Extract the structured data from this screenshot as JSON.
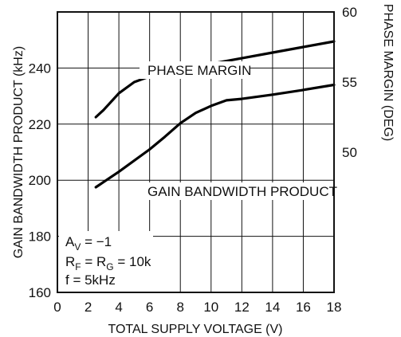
{
  "chart_data": {
    "type": "line",
    "xlabel": "TOTAL SUPPLY VOLTAGE (V)",
    "ylabel_left": "GAIN BANDWIDTH PRODUCT (kHz)",
    "ylabel_right": "PHASE MARGIN (DEG)",
    "xlim": [
      0,
      18
    ],
    "ylim_left": [
      160,
      260
    ],
    "ylim_right": [
      40,
      60
    ],
    "x_ticks": [
      "0",
      "2",
      "4",
      "6",
      "8",
      "10",
      "12",
      "14",
      "16",
      "18"
    ],
    "y_left_ticks": [
      "160",
      "180",
      "200",
      "220",
      "240"
    ],
    "y_right_ticks": [
      "50",
      "55",
      "60"
    ],
    "grid": true,
    "series": [
      {
        "name": "PHASE MARGIN",
        "axis": "right",
        "x": [
          2.5,
          3,
          3.5,
          4,
          5,
          6,
          7,
          8,
          10,
          12,
          14,
          16,
          18
        ],
        "values": [
          52.5,
          53,
          53.6,
          54.2,
          55,
          55.4,
          55.7,
          55.9,
          56.3,
          56.7,
          57.1,
          57.5,
          57.9
        ]
      },
      {
        "name": "GAIN BANDWIDTH PRODUCT",
        "axis": "left",
        "x": [
          2.5,
          4,
          6,
          7,
          8,
          9,
          10,
          11,
          12,
          14,
          16,
          18
        ],
        "values": [
          197.5,
          203,
          211,
          215.5,
          220.3,
          224,
          226.5,
          228.5,
          229,
          230.5,
          232.2,
          234
        ]
      }
    ],
    "annotations": {
      "conditions": [
        {
          "main": "A",
          "sub": "V",
          "rest": " = −1"
        },
        {
          "main": "R",
          "sub": "F",
          "mid": " = R",
          "sub2": "G",
          "rest": " = 10k"
        },
        {
          "main": "f = 5kHz"
        }
      ]
    }
  }
}
